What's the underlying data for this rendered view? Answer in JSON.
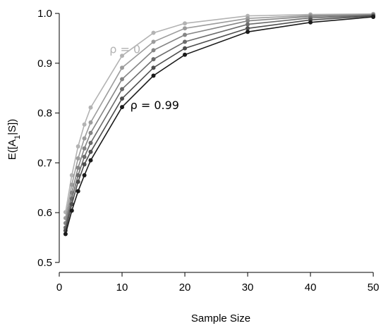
{
  "chart_data": {
    "type": "line",
    "title": "",
    "xlabel": "Sample Size",
    "ylabel_main": "E([A",
    "ylabel_sub": "1",
    "ylabel_tail": "|S])",
    "xlim": [
      0,
      51
    ],
    "ylim": [
      0.48,
      1.01
    ],
    "xticks": [
      0,
      10,
      20,
      30,
      40,
      50
    ],
    "yticks": [
      0.5,
      0.6,
      0.7,
      0.8,
      0.9,
      1.0
    ],
    "ytick_labels": [
      "0.5",
      "0.6",
      "0.7",
      "0.8",
      "0.9",
      "1.0"
    ],
    "grid": false,
    "x": [
      1,
      2,
      3,
      4,
      5,
      10,
      15,
      20,
      30,
      40,
      50
    ],
    "series": [
      {
        "color": "#b3b3b3",
        "values": [
          0.601,
          0.675,
          0.733,
          0.777,
          0.811,
          0.915,
          0.961,
          0.98,
          0.995,
          0.998,
          0.999
        ]
      },
      {
        "color": "#9c9c9c",
        "values": [
          0.589,
          0.656,
          0.709,
          0.749,
          0.781,
          0.891,
          0.943,
          0.97,
          0.99,
          0.996,
          0.998
        ]
      },
      {
        "color": "#858585",
        "values": [
          0.579,
          0.64,
          0.69,
          0.729,
          0.76,
          0.868,
          0.926,
          0.957,
          0.985,
          0.994,
          0.997
        ]
      },
      {
        "color": "#6b6b6b",
        "values": [
          0.57,
          0.628,
          0.675,
          0.712,
          0.74,
          0.848,
          0.908,
          0.943,
          0.978,
          0.991,
          0.996
        ]
      },
      {
        "color": "#4d4d4d",
        "values": [
          0.564,
          0.617,
          0.662,
          0.697,
          0.722,
          0.829,
          0.891,
          0.93,
          0.97,
          0.987,
          0.995
        ]
      },
      {
        "color": "#1a1a1a",
        "values": [
          0.557,
          0.604,
          0.643,
          0.675,
          0.705,
          0.812,
          0.875,
          0.917,
          0.963,
          0.982,
          0.993
        ]
      }
    ],
    "annotations": [
      {
        "text": "ρ = 0",
        "x": 8.0,
        "y": 0.92,
        "color": "#b3b3b3"
      },
      {
        "text": "ρ = 0.99",
        "x": 11.3,
        "y": 0.808,
        "color": "#000000"
      }
    ]
  }
}
